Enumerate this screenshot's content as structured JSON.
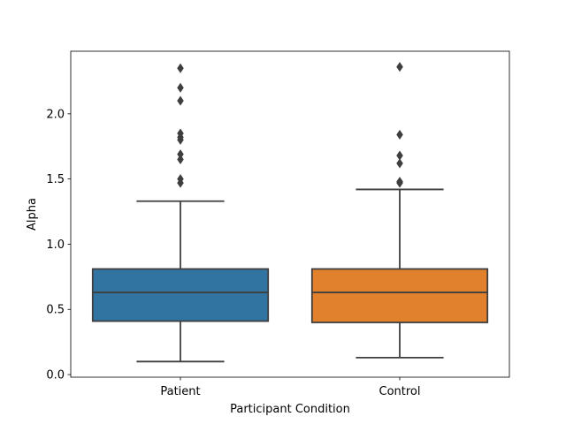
{
  "chart_data": {
    "type": "box",
    "title": "",
    "xlabel": "Participant Condition",
    "ylabel": "Alpha",
    "categories": [
      "Patient",
      "Control"
    ],
    "ylim": [
      -0.02,
      2.48
    ],
    "yticks": [
      0.0,
      0.5,
      1.0,
      1.5,
      2.0
    ],
    "ytick_labels": [
      "0.0",
      "0.5",
      "1.0",
      "1.5",
      "2.0"
    ],
    "grid": false,
    "boxes": [
      {
        "name": "Patient",
        "color": "#3274a1",
        "whisker_low": 0.1,
        "q1": 0.41,
        "median": 0.63,
        "q3": 0.81,
        "whisker_high": 1.33,
        "outliers": [
          1.47,
          1.5,
          1.65,
          1.69,
          1.8,
          1.82,
          1.85,
          2.1,
          2.2,
          2.35
        ]
      },
      {
        "name": "Control",
        "color": "#e1812c",
        "whisker_low": 0.13,
        "q1": 0.4,
        "median": 0.63,
        "q3": 0.81,
        "whisker_high": 1.42,
        "outliers": [
          1.47,
          1.48,
          1.62,
          1.68,
          1.84,
          2.36
        ]
      }
    ]
  }
}
